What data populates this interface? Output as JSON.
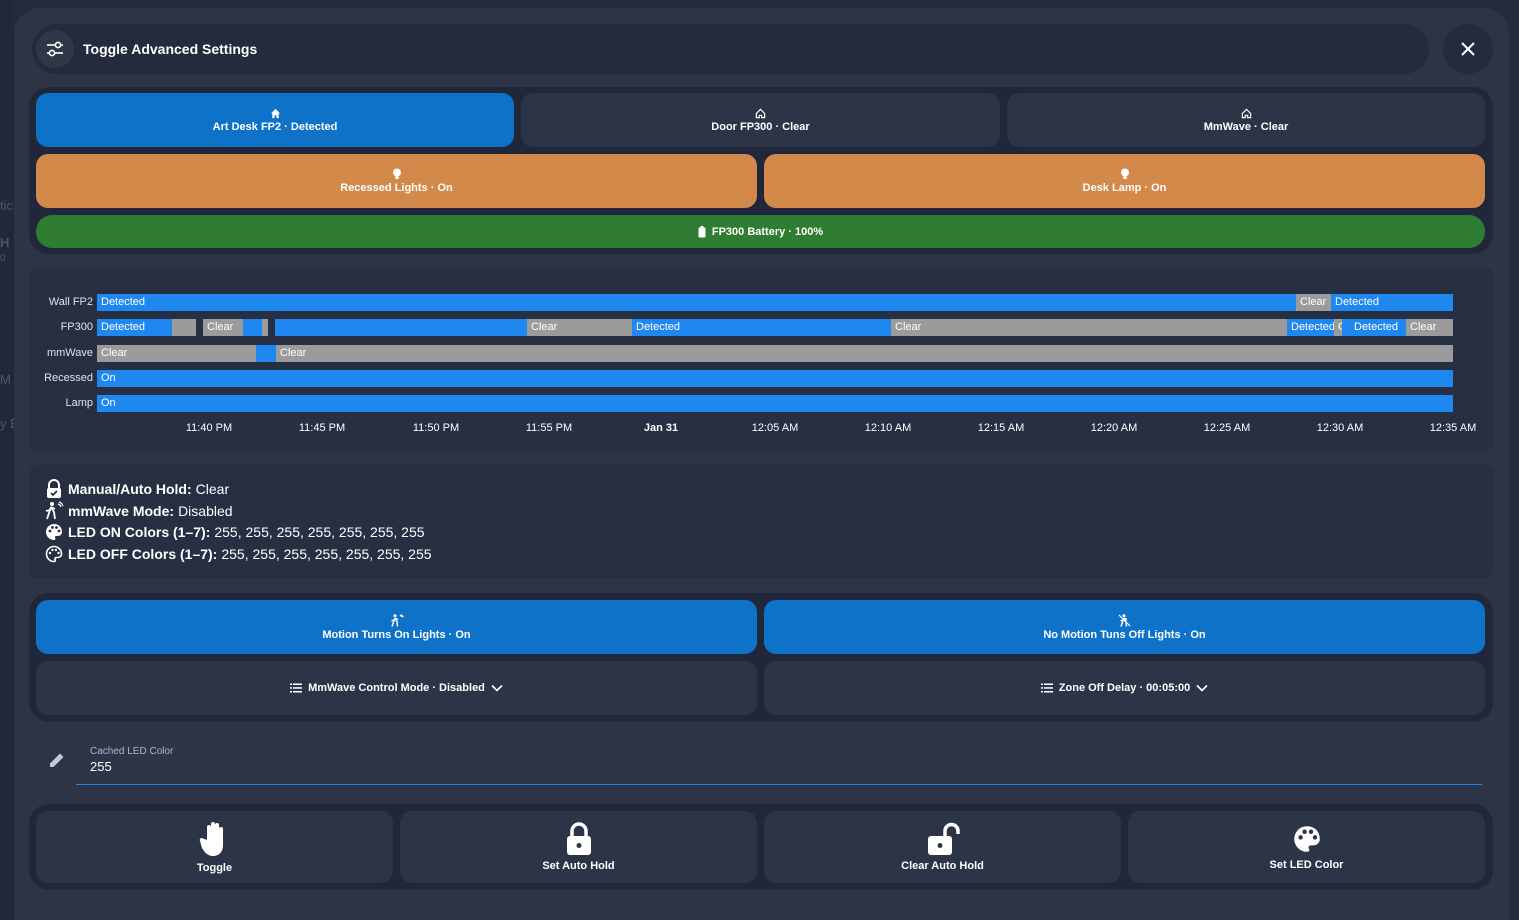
{
  "background_fragments": [
    "tic",
    "H",
    "0",
    "M",
    "y E"
  ],
  "header": {
    "title": "Toggle Advanced Settings",
    "settings_icon": "tune-icon",
    "close_icon": "close-icon"
  },
  "status_tiles": [
    {
      "label": "Art Desk FP2 · Detected",
      "icon": "home-icon",
      "color": "#0e73c8"
    },
    {
      "label": "Door FP300 · Clear",
      "icon": "home-outline-icon",
      "color": "#2c3548"
    },
    {
      "label": "MmWave · Clear",
      "icon": "home-outline-icon",
      "color": "#2c3548"
    }
  ],
  "light_tiles": [
    {
      "label": "Recessed Lights · On",
      "icon": "bulb-icon",
      "color": "#d3894a"
    },
    {
      "label": "Desk Lamp · On",
      "icon": "bulb-icon",
      "color": "#d3894a"
    }
  ],
  "battery_tile": {
    "label": "FP300 Battery · 100%",
    "icon": "battery-icon",
    "color": "#2e7d32",
    "level": 1.0
  },
  "timeline": {
    "rows": [
      {
        "label": "Wall FP2",
        "segments": [
          {
            "state": "Detected"
          },
          {
            "state": "Clear"
          },
          {
            "state": "Detected"
          }
        ]
      },
      {
        "label": "FP300",
        "segments": [
          {
            "state": "Detected"
          },
          {
            "state": "Clear",
            "text": ""
          },
          {
            "state": "Clear"
          },
          {
            "state": "Detected",
            "text": ""
          },
          {
            "state": "Clear",
            "text": ""
          },
          {
            "state": "Detected",
            "text": ""
          },
          {
            "state": "Clear"
          },
          {
            "state": "Detected"
          },
          {
            "state": "Clear"
          },
          {
            "state": "Detected"
          },
          {
            "state": "Clear"
          },
          {
            "state": "Detected",
            "text": ""
          },
          {
            "state": "Detected"
          },
          {
            "state": "Clear"
          }
        ]
      },
      {
        "label": "mmWave",
        "segments": [
          {
            "state": "Clear"
          },
          {
            "state": "Detected",
            "text": ""
          },
          {
            "state": "Clear"
          }
        ]
      },
      {
        "label": "Recessed",
        "segments": [
          {
            "state": "On"
          }
        ]
      },
      {
        "label": "Lamp",
        "segments": [
          {
            "state": "On"
          }
        ]
      }
    ],
    "ticks": [
      "11:40 PM",
      "11:45 PM",
      "11:50 PM",
      "11:55 PM",
      "Jan 31",
      "12:05 AM",
      "12:10 AM",
      "12:15 AM",
      "12:20 AM",
      "12:25 AM",
      "12:30 AM",
      "12:35 AM"
    ],
    "colors": {
      "active": "#1e88f0",
      "inactive": "#9b9b9b"
    }
  },
  "info": [
    {
      "icon": "lock-check-icon",
      "key": "Manual/Auto Hold:",
      "value": " Clear"
    },
    {
      "icon": "motion-sensor-icon",
      "key": "mmWave Mode:",
      "value": " Disabled"
    },
    {
      "icon": "palette-icon",
      "key": "LED ON Colors (1–7):",
      "value": " 255,  255,  255,  255,  255,  255,  255"
    },
    {
      "icon": "palette-outline-icon",
      "key": "LED OFF Colors (1–7):",
      "value": " 255,  255,  255,  255,  255,  255,  255"
    }
  ],
  "controls": {
    "motion_on": {
      "label": "Motion Turns On Lights · On",
      "icon": "walk-motion-icon"
    },
    "motion_off": {
      "label": "No Motion Tuns Off Lights · On",
      "icon": "walk-off-icon"
    },
    "mmwave_mode": {
      "label": "MmWave Control Mode · Disabled",
      "icon": "list-icon"
    },
    "zone_delay": {
      "label": "Zone Off Delay · 00:05:00",
      "icon": "list-icon"
    }
  },
  "led_field": {
    "label": "Cached LED Color",
    "value": "255",
    "icon": "pencil-icon"
  },
  "actions": [
    {
      "label": "Toggle",
      "icon": "hand-icon"
    },
    {
      "label": "Set Auto Hold",
      "icon": "lock-icon"
    },
    {
      "label": "Clear Auto Hold",
      "icon": "lock-open-icon"
    },
    {
      "label": "Set LED Color",
      "icon": "palette-icon"
    }
  ]
}
